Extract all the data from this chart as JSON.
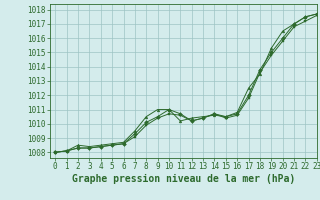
{
  "xlabel": "Graphe pression niveau de la mer (hPa)",
  "ylim": [
    1007.6,
    1018.4
  ],
  "xlim": [
    -0.5,
    23
  ],
  "yticks": [
    1008,
    1009,
    1010,
    1011,
    1012,
    1013,
    1014,
    1015,
    1016,
    1017,
    1018
  ],
  "xticks": [
    0,
    1,
    2,
    3,
    4,
    5,
    6,
    7,
    8,
    9,
    10,
    11,
    12,
    13,
    14,
    15,
    16,
    17,
    18,
    19,
    20,
    21,
    22,
    23
  ],
  "bg_color": "#d4ecec",
  "grid_color": "#9ec4c4",
  "line_color": "#2d6a2d",
  "line1_y": [
    1008.0,
    1008.1,
    1008.3,
    1008.3,
    1008.4,
    1008.5,
    1008.6,
    1009.3,
    1010.1,
    1010.5,
    1011.0,
    1010.7,
    1010.2,
    1010.4,
    1010.7,
    1010.5,
    1010.7,
    1012.0,
    1013.8,
    1015.0,
    1016.0,
    1017.0,
    1017.5,
    1017.7
  ],
  "line2_y": [
    1008.0,
    1008.1,
    1008.5,
    1008.4,
    1008.5,
    1008.6,
    1008.7,
    1009.5,
    1010.5,
    1011.0,
    1011.0,
    1010.2,
    1010.4,
    1010.5,
    1010.6,
    1010.5,
    1010.8,
    1012.5,
    1013.5,
    1015.3,
    1016.5,
    1017.0,
    1017.5,
    1017.7
  ],
  "line3_y": [
    1008.0,
    1008.1,
    1008.3,
    1008.3,
    1008.4,
    1008.5,
    1008.6,
    1009.1,
    1009.9,
    1010.4,
    1010.7,
    1010.6,
    1010.2,
    1010.4,
    1010.7,
    1010.4,
    1010.6,
    1011.8,
    1013.6,
    1014.8,
    1015.8,
    1016.8,
    1017.2,
    1017.6
  ],
  "tick_color": "#2d6a2d",
  "tick_fontsize": 5.5,
  "xlabel_fontsize": 7.0,
  "marker_size": 2.0,
  "linewidth": 0.7
}
